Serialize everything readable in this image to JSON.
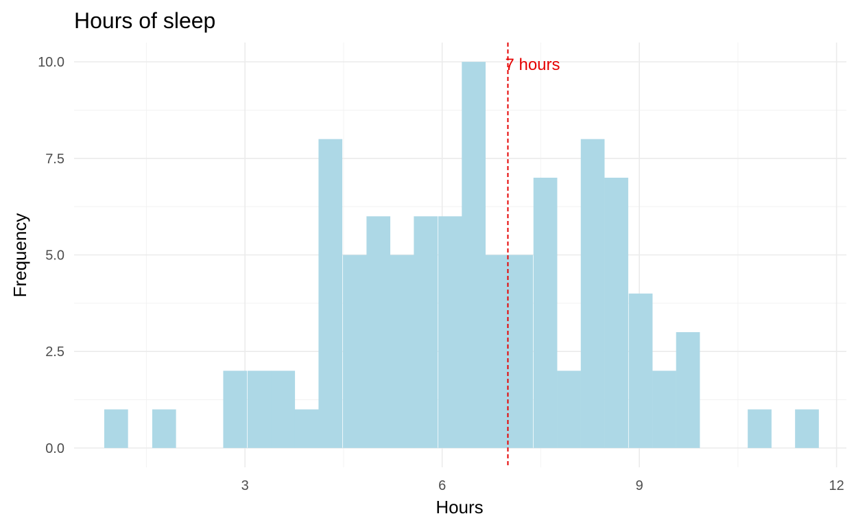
{
  "chart_data": {
    "type": "bar",
    "title": "Hours of sleep",
    "xlabel": "Hours",
    "ylabel": "Frequency",
    "xlim": [
      0.4,
      12.15
    ],
    "ylim": [
      -0.5,
      10.5
    ],
    "x_ticks": [
      3,
      6,
      9,
      12
    ],
    "x_tick_labels": [
      "3",
      "6",
      "9",
      "12"
    ],
    "y_ticks": [
      0,
      2.5,
      5,
      7.5,
      10
    ],
    "y_tick_labels": [
      "0.0",
      "2.5",
      "5.0",
      "7.5",
      "10.0"
    ],
    "bin_width": 0.362,
    "bins": [
      {
        "x": 1.04,
        "count": 1
      },
      {
        "x": 1.4,
        "count": 0
      },
      {
        "x": 1.77,
        "count": 1
      },
      {
        "x": 2.13,
        "count": 0
      },
      {
        "x": 2.49,
        "count": 0
      },
      {
        "x": 2.85,
        "count": 2
      },
      {
        "x": 3.22,
        "count": 2
      },
      {
        "x": 3.58,
        "count": 2
      },
      {
        "x": 3.94,
        "count": 1
      },
      {
        "x": 4.3,
        "count": 8
      },
      {
        "x": 4.67,
        "count": 5
      },
      {
        "x": 5.03,
        "count": 6
      },
      {
        "x": 5.39,
        "count": 5
      },
      {
        "x": 5.75,
        "count": 6
      },
      {
        "x": 6.12,
        "count": 6
      },
      {
        "x": 6.48,
        "count": 10
      },
      {
        "x": 6.84,
        "count": 5
      },
      {
        "x": 7.2,
        "count": 5
      },
      {
        "x": 7.57,
        "count": 7
      },
      {
        "x": 7.93,
        "count": 2
      },
      {
        "x": 8.29,
        "count": 8
      },
      {
        "x": 8.65,
        "count": 7
      },
      {
        "x": 9.02,
        "count": 4
      },
      {
        "x": 9.38,
        "count": 2
      },
      {
        "x": 9.74,
        "count": 3
      },
      {
        "x": 10.1,
        "count": 0
      },
      {
        "x": 10.47,
        "count": 0
      },
      {
        "x": 10.83,
        "count": 1
      },
      {
        "x": 11.19,
        "count": 0
      },
      {
        "x": 11.55,
        "count": 1
      }
    ],
    "reference_line": {
      "x": 7,
      "label": "7 hours",
      "color": "#e50000",
      "style": "dashed"
    },
    "bar_color": "#add8e6",
    "grid": true,
    "background": "#ffffff",
    "legend": "none"
  }
}
